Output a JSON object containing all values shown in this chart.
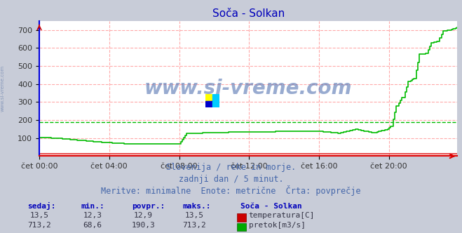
{
  "title": "Soča - Solkan",
  "background_color": "#c8ccd8",
  "plot_bg_color": "#ffffff",
  "grid_color": "#ffaaaa",
  "ylabel_left": "",
  "xlabel": "",
  "ylim": [
    0,
    750
  ],
  "yticks": [
    100,
    200,
    300,
    400,
    500,
    600,
    700
  ],
  "xlim": [
    0,
    287
  ],
  "xtick_labels": [
    "čet 00:00",
    "čet 04:00",
    "čet 08:00",
    "čet 12:00",
    "čet 16:00",
    "čet 20:00"
  ],
  "xtick_positions": [
    0,
    48,
    96,
    144,
    192,
    240
  ],
  "temp_color": "#dd0000",
  "flow_color": "#00bb00",
  "avg_flow_color": "#00bb00",
  "avg_flow_value": 190.3,
  "spine_left_color": "#0000dd",
  "spine_bottom_color": "#dd0000",
  "subtitle1": "Slovenija / reke in morje.",
  "subtitle2": "zadnji dan / 5 minut.",
  "subtitle3": "Meritve: minimalne  Enote: metrične  Črta: povprečje",
  "watermark": "www.si-vreme.com",
  "watermark_color": "#4466aa",
  "sidebar_text": "www.si-vreme.com",
  "table_headers": [
    "sedaj:",
    "min.:",
    "povpr.:",
    "maks.:"
  ],
  "table_header_color": "#0000bb",
  "station_name": "Soča - Solkan",
  "temp_row": [
    "13,5",
    "12,3",
    "12,9",
    "13,5"
  ],
  "flow_row": [
    "713,2",
    "68,6",
    "190,3",
    "713,2"
  ],
  "legend_temp": "temperatura[C]",
  "legend_flow": "pretok[m3/s]",
  "text_color": "#4466aa"
}
